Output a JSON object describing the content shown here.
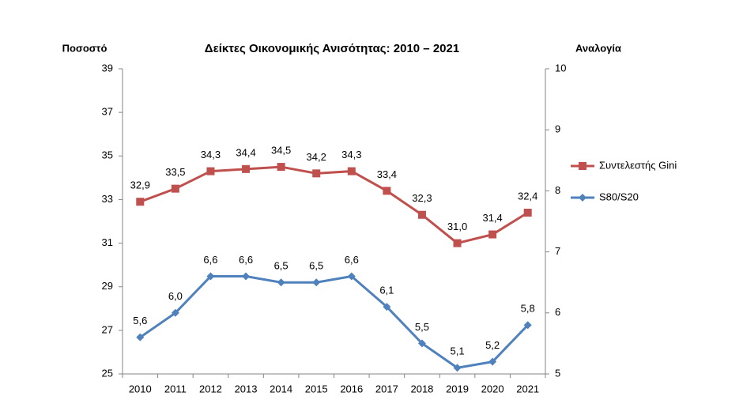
{
  "chart_data": {
    "type": "line",
    "title": "Δείκτες Οικονομικής Ανισότητας: 2010 – 2021",
    "y_label": "Ποσοστό",
    "y2_label": "Αναλογία",
    "categories": [
      "2010",
      "2011",
      "2012",
      "2013",
      "2014",
      "2015",
      "2016",
      "2017",
      "2018",
      "2019",
      "2020",
      "2021"
    ],
    "ylim": [
      25,
      39
    ],
    "yticks": [
      25,
      27,
      29,
      31,
      33,
      35,
      37,
      39
    ],
    "y2lim": [
      5,
      10
    ],
    "y2ticks": [
      5,
      6,
      7,
      8,
      9,
      10
    ],
    "legend": "right",
    "grid": false,
    "series": [
      {
        "name": "Συντελεστής Gini",
        "color": "#c0504d",
        "marker": "square",
        "values": [
          32.9,
          33.5,
          34.3,
          34.4,
          34.5,
          34.2,
          34.3,
          33.4,
          32.3,
          31.0,
          31.4,
          32.4
        ],
        "value_labels": [
          "32,9",
          "33,5",
          "34,3",
          "34,4",
          "34,5",
          "34,2",
          "34,3",
          "33,4",
          "32,3",
          "31,0",
          "31,4",
          "32,4"
        ]
      },
      {
        "name": "S80/S20",
        "color": "#4f81bd",
        "marker": "diamond",
        "axis": "y2",
        "values": [
          5.6,
          6.0,
          6.6,
          6.6,
          6.5,
          6.5,
          6.6,
          6.1,
          5.5,
          5.1,
          5.2,
          5.8
        ],
        "value_labels": [
          "5,6",
          "6,0",
          "6,6",
          "6,6",
          "6,5",
          "6,5",
          "6,6",
          "6,1",
          "5,5",
          "5,1",
          "5,2",
          "5,8"
        ]
      }
    ]
  }
}
